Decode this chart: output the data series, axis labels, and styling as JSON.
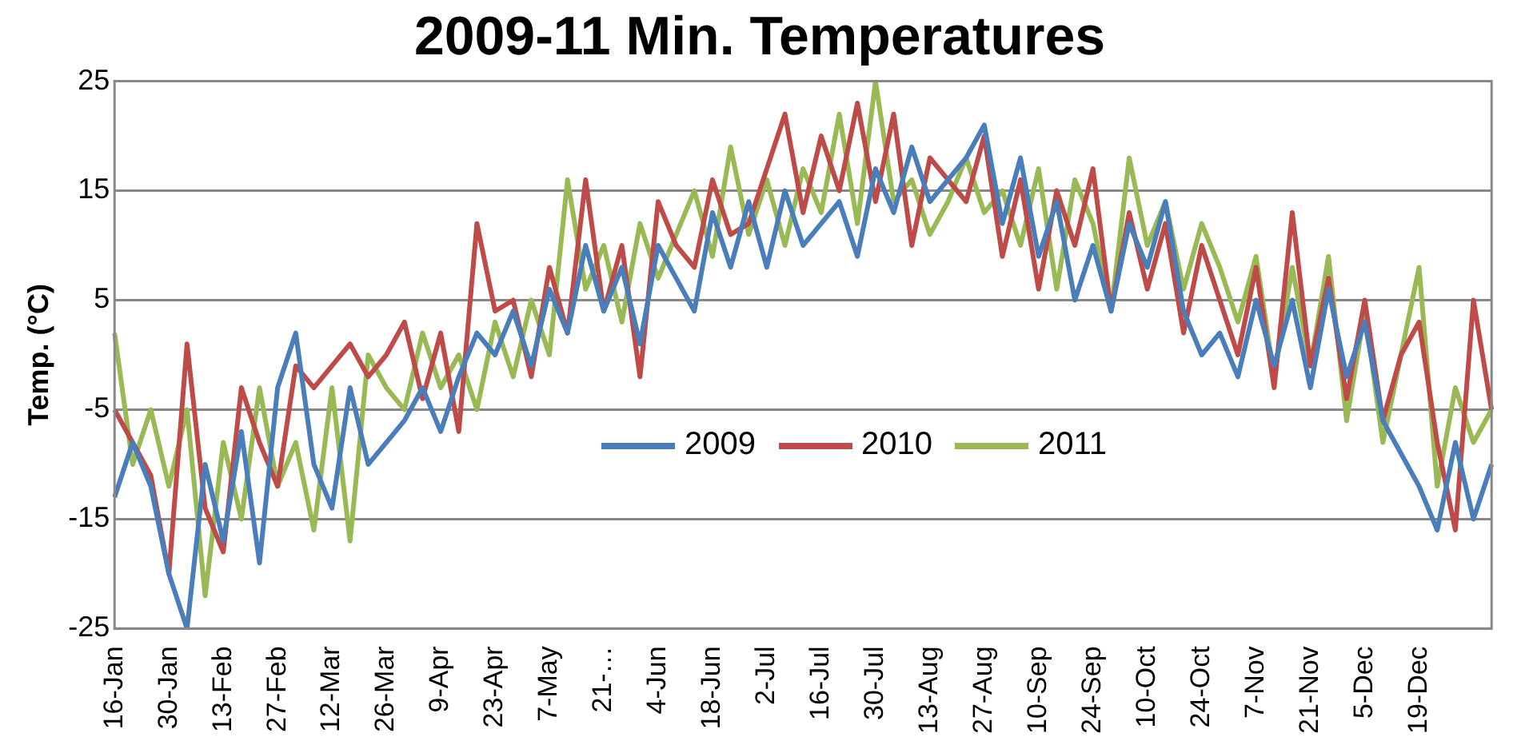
{
  "chart_data": {
    "type": "line",
    "title": "2009-11 Min. Temperatures",
    "ylabel": "Temp. (°C)",
    "categories": [
      "16-Jan",
      null,
      null,
      "30-Jan",
      null,
      null,
      "13-Feb",
      null,
      null,
      "27-Feb",
      null,
      null,
      "12-Mar",
      null,
      null,
      "26-Mar",
      null,
      null,
      "9-Apr",
      null,
      null,
      "23-Apr",
      null,
      null,
      "7-May",
      null,
      null,
      "21-…",
      null,
      null,
      "4-Jun",
      null,
      null,
      "18-Jun",
      null,
      null,
      "2-Jul",
      null,
      null,
      "16-Jul",
      null,
      null,
      "30-Jul",
      null,
      null,
      "13-Aug",
      null,
      null,
      "27-Aug",
      null,
      null,
      "10-Sep",
      null,
      null,
      "24-Sep",
      null,
      null,
      "10-Oct",
      null,
      null,
      "24-Oct",
      null,
      null,
      "7-Nov",
      null,
      null,
      "21-Nov",
      null,
      null,
      "5-Dec",
      null,
      null,
      "19-Dec",
      null,
      null,
      null,
      null
    ],
    "ylim": [
      -25,
      25
    ],
    "yticks": [
      -25,
      -15,
      -5,
      5,
      15,
      25
    ],
    "grid": "y",
    "legend": "center",
    "marker": "none",
    "line_style": "solid",
    "series": [
      {
        "name": "2009",
        "color": "#4a7ebb",
        "values": [
          -13,
          -8,
          -12,
          -20,
          -25,
          -10,
          -17,
          -7,
          -19,
          -3,
          2,
          -10,
          -14,
          -3,
          -10,
          -8,
          -6,
          -3,
          -7,
          -2,
          2,
          0,
          4,
          -1,
          6,
          2,
          10,
          4,
          8,
          1,
          10,
          7,
          4,
          13,
          8,
          14,
          8,
          15,
          10,
          12,
          14,
          9,
          17,
          13,
          19,
          14,
          16,
          18,
          21,
          12,
          18,
          9,
          14,
          5,
          10,
          4,
          12,
          8,
          14,
          4,
          0,
          2,
          -2,
          5,
          -1,
          5,
          -3,
          6,
          -2,
          3,
          -6,
          -9,
          -12,
          -16,
          -8,
          -15,
          -10
        ]
      },
      {
        "name": "2010",
        "color": "#be4b48",
        "values": [
          -5,
          -8,
          -11,
          -20,
          1,
          -14,
          -18,
          -3,
          -8,
          -12,
          -1,
          -3,
          -1,
          1,
          -2,
          0,
          3,
          -4,
          2,
          -7,
          12,
          4,
          5,
          -2,
          8,
          2,
          16,
          4,
          10,
          -2,
          14,
          10,
          8,
          16,
          11,
          12,
          17,
          22,
          13,
          20,
          15,
          23,
          14,
          22,
          10,
          18,
          16,
          14,
          20,
          9,
          16,
          6,
          15,
          10,
          17,
          4,
          13,
          6,
          12,
          2,
          10,
          5,
          0,
          8,
          -3,
          13,
          -1,
          7,
          -4,
          5,
          -6,
          0,
          3,
          -8,
          -16,
          5,
          -5
        ]
      },
      {
        "name": "2011",
        "color": "#98b954",
        "values": [
          2,
          -10,
          -5,
          -12,
          -5,
          -22,
          -8,
          -15,
          -3,
          -12,
          -8,
          -16,
          -3,
          -17,
          0,
          -3,
          -5,
          2,
          -3,
          0,
          -5,
          3,
          -2,
          5,
          0,
          16,
          6,
          10,
          3,
          12,
          7,
          11,
          15,
          9,
          19,
          11,
          16,
          10,
          17,
          13,
          22,
          12,
          25,
          14,
          16,
          11,
          14,
          18,
          13,
          15,
          10,
          17,
          6,
          16,
          12,
          4,
          18,
          10,
          14,
          6,
          12,
          8,
          3,
          9,
          -2,
          8,
          -1,
          9,
          -6,
          4,
          -8,
          0,
          8,
          -12,
          -3,
          -8,
          -5
        ]
      }
    ]
  }
}
